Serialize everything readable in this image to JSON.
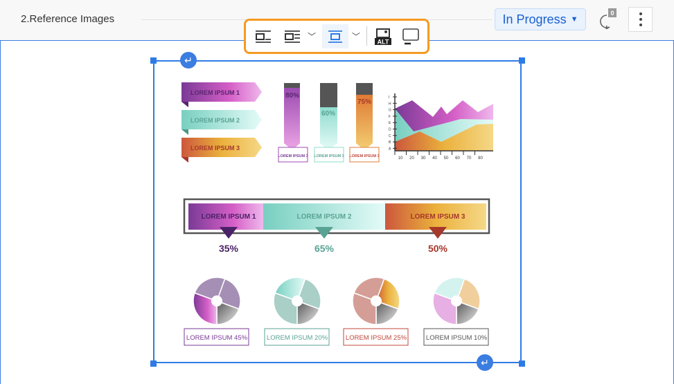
{
  "header": {
    "title": "2.Reference Images",
    "status": "In Progress",
    "comment_count": "0"
  },
  "toolbar": {
    "buttons": [
      "inline-left-icon",
      "wrap-text-icon",
      "chevron-down-icon",
      "break-text-icon",
      "chevron-down-icon",
      "alt-text-icon",
      "caption-icon"
    ],
    "alt_label": "ALT"
  },
  "image": {
    "ribbons": [
      "LOREM IPSUM 1",
      "LOREM IPSUM 2",
      "LOREM IPSUM 3"
    ],
    "bars": [
      {
        "pct": "80%",
        "label": "LOREM IPSUM 3"
      },
      {
        "pct": "60%",
        "label": "LOREM IPSUM 3"
      },
      {
        "pct": "75%",
        "label": "LOREM IPSUM 3"
      }
    ],
    "area_y_ticks": [
      "I",
      "H",
      "G",
      "F",
      "E",
      "D",
      "C",
      "B",
      "A"
    ],
    "area_x_ticks": [
      "10",
      "20",
      "30",
      "40",
      "50",
      "60",
      "70",
      "80"
    ],
    "progress": {
      "segments": [
        "LOREM IPSUM 1",
        "LOREM IPSUM 2",
        "LOREM IPSUM 3"
      ],
      "values": [
        "35%",
        "65%",
        "50%"
      ]
    },
    "pies": [
      "LOREM IPSUM 45%",
      "LOREM IPSUM 20%",
      "LOREM IPSUM 25%",
      "LOREM IPSUM 10%"
    ]
  },
  "colors": {
    "accent": "#2f7be5",
    "toolbar_border": "#f59a23",
    "purple": "#7a3a96",
    "teal": "#5aa394",
    "orange": "#c2473a"
  }
}
